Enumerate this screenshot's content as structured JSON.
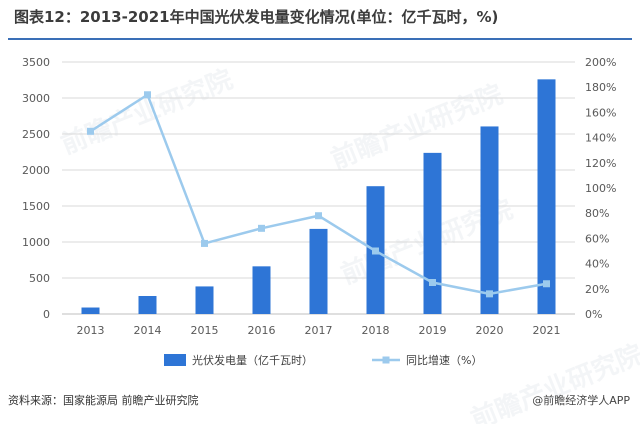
{
  "title": "图表12：2013-2021年中国光伏发电量变化情况(单位：亿千瓦时，%)",
  "source": "资料来源：国家能源局 前瞻产业研究院",
  "brand_text": "@前瞻经济学人APP",
  "watermark": "前瞻产业研究院",
  "colors": {
    "bar": "#2e75d6",
    "line": "#9ccaed",
    "rule": "#3a6fb7",
    "grid": "#d9d9d9"
  },
  "chart_data": {
    "type": "bar",
    "title": "图表12：2013-2021年中国光伏发电量变化情况(单位：亿千瓦时，%)",
    "categories": [
      "2013",
      "2014",
      "2015",
      "2016",
      "2017",
      "2018",
      "2019",
      "2020",
      "2021"
    ],
    "series": [
      {
        "name": "光伏发电量（亿千瓦时）",
        "type": "bar",
        "axis": "left",
        "values": [
          90,
          250,
          383,
          662,
          1182,
          1775,
          2238,
          2605,
          3259
        ]
      },
      {
        "name": "同比增速（%）",
        "type": "line",
        "axis": "right",
        "values": [
          145,
          174,
          56,
          68,
          78,
          50,
          25,
          16,
          24
        ]
      }
    ],
    "left_axis": {
      "ylim": [
        0,
        3500
      ],
      "ticks": [
        "0",
        "500",
        "1000",
        "1500",
        "2000",
        "2500",
        "3000",
        "3500"
      ]
    },
    "right_axis": {
      "ylim": [
        0,
        200
      ],
      "ticks": [
        "0%",
        "20%",
        "40%",
        "60%",
        "80%",
        "100%",
        "120%",
        "140%",
        "160%",
        "180%",
        "200%"
      ]
    },
    "grid": true,
    "legend": "bottom"
  }
}
